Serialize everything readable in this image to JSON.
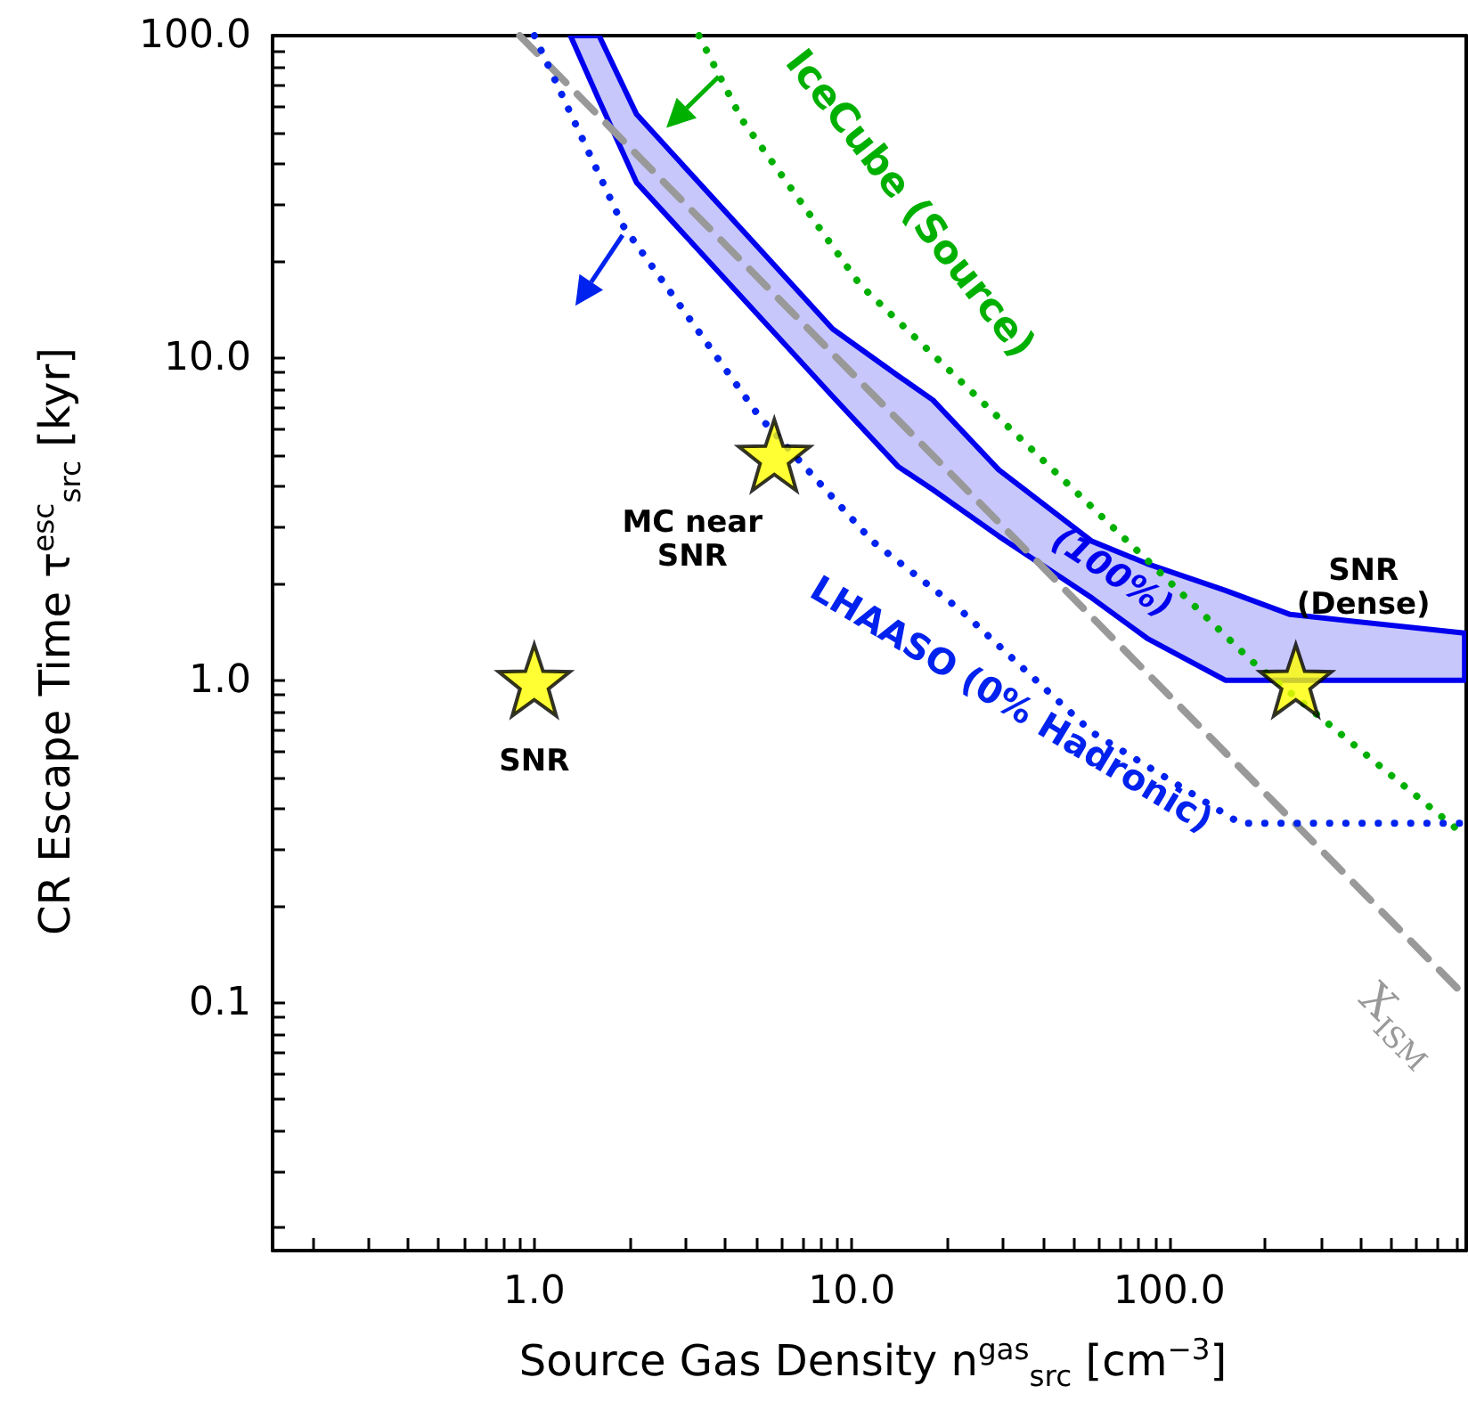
{
  "chart_data": {
    "type": "line",
    "xlabel": "Source Gas Density n$^{gas}$$_{src}$ [cm$^{−3}$]",
    "ylabel": "CR Escape Time τ$^{esc}$$_{src}$ [kyr]",
    "log": "xy",
    "grid": false,
    "xlim": [
      0.15,
      860
    ],
    "ylim": [
      0.017,
      100
    ],
    "xticks": [
      {
        "value": 0.2,
        "label": null
      },
      {
        "value": 0.3,
        "label": null
      },
      {
        "value": 0.4,
        "label": null
      },
      {
        "value": 0.5,
        "label": null
      },
      {
        "value": 0.6,
        "label": null
      },
      {
        "value": 0.7,
        "label": null
      },
      {
        "value": 0.8,
        "label": null
      },
      {
        "value": 0.9,
        "label": null
      },
      {
        "value": 1,
        "label": "1.0"
      },
      {
        "value": 2,
        "label": null
      },
      {
        "value": 3,
        "label": null
      },
      {
        "value": 4,
        "label": null
      },
      {
        "value": 5,
        "label": null
      },
      {
        "value": 6,
        "label": null
      },
      {
        "value": 7,
        "label": null
      },
      {
        "value": 8,
        "label": null
      },
      {
        "value": 9,
        "label": null
      },
      {
        "value": 10,
        "label": "10.0"
      },
      {
        "value": 20,
        "label": null
      },
      {
        "value": 30,
        "label": null
      },
      {
        "value": 40,
        "label": null
      },
      {
        "value": 50,
        "label": null
      },
      {
        "value": 60,
        "label": null
      },
      {
        "value": 70,
        "label": null
      },
      {
        "value": 80,
        "label": null
      },
      {
        "value": 90,
        "label": null
      },
      {
        "value": 100,
        "label": "100.0"
      },
      {
        "value": 200,
        "label": null
      },
      {
        "value": 300,
        "label": null
      },
      {
        "value": 400,
        "label": null
      },
      {
        "value": 500,
        "label": null
      },
      {
        "value": 600,
        "label": null
      },
      {
        "value": 700,
        "label": null
      },
      {
        "value": 800,
        "label": null
      }
    ],
    "yticks": [
      {
        "value": 0.02,
        "label": null
      },
      {
        "value": 0.03,
        "label": null
      },
      {
        "value": 0.04,
        "label": null
      },
      {
        "value": 0.05,
        "label": null
      },
      {
        "value": 0.06,
        "label": null
      },
      {
        "value": 0.07,
        "label": null
      },
      {
        "value": 0.08,
        "label": null
      },
      {
        "value": 0.09,
        "label": null
      },
      {
        "value": 0.1,
        "label": "0.1"
      },
      {
        "value": 0.2,
        "label": null
      },
      {
        "value": 0.3,
        "label": null
      },
      {
        "value": 0.4,
        "label": null
      },
      {
        "value": 0.5,
        "label": null
      },
      {
        "value": 0.6,
        "label": null
      },
      {
        "value": 0.7,
        "label": null
      },
      {
        "value": 0.8,
        "label": null
      },
      {
        "value": 0.9,
        "label": null
      },
      {
        "value": 1,
        "label": "1.0"
      },
      {
        "value": 2,
        "label": null
      },
      {
        "value": 3,
        "label": null
      },
      {
        "value": 4,
        "label": null
      },
      {
        "value": 5,
        "label": null
      },
      {
        "value": 6,
        "label": null
      },
      {
        "value": 7,
        "label": null
      },
      {
        "value": 8,
        "label": null
      },
      {
        "value": 9,
        "label": null
      },
      {
        "value": 10,
        "label": "10.0"
      },
      {
        "value": 20,
        "label": null
      },
      {
        "value": 30,
        "label": null
      },
      {
        "value": 40,
        "label": null
      },
      {
        "value": 50,
        "label": null
      },
      {
        "value": 60,
        "label": null
      },
      {
        "value": 70,
        "label": null
      },
      {
        "value": 80,
        "label": null
      },
      {
        "value": 90,
        "label": null
      },
      {
        "value": 100,
        "label": "100.0"
      }
    ],
    "series": [
      {
        "name": "(100%)",
        "type": "area",
        "color": "#0000ee",
        "x": [
          1.3,
          1.6,
          2.1,
          8.7,
          14,
          18,
          29,
          57,
          85,
          150,
          240,
          850
        ],
        "values": [
          null,
          null,
          null,
          null,
          null,
          null,
          null,
          null,
          null,
          null,
          null,
          null
        ],
        "upper": [
          100,
          100,
          57,
          12.3,
          8.8,
          7.4,
          4.5,
          2.7,
          2.3,
          1.9,
          1.6,
          1.4
        ],
        "lower": [
          100,
          63,
          35,
          7.6,
          4.6,
          3.9,
          2.8,
          1.8,
          1.35,
          1.0,
          1.0,
          1.0
        ]
      },
      {
        "name": "X$_{ISM}$",
        "color": "#999999",
        "line_style": "dashed",
        "marker": "none",
        "x": [
          0.9,
          850
        ],
        "values": [
          100,
          0.105
        ]
      },
      {
        "name": "IceCube (Source)",
        "color": "#00b000",
        "line_style": "dotted",
        "marker": "none",
        "x": [
          3.3,
          4.5,
          10.6,
          80,
          181,
          850
        ],
        "values": [
          100,
          55,
          16.9,
          2.5,
          1.15,
          0.33
        ]
      },
      {
        "name": "LHAASO (0% Hadronic)",
        "color": "#0022ee",
        "line_style": "dotted",
        "marker": "none",
        "x": [
          1.0,
          1.9,
          5.1,
          11.6,
          22,
          57,
          167,
          850
        ],
        "values": [
          100,
          25.8,
          6.6,
          2.7,
          1.65,
          0.69,
          0.36,
          0.36
        ]
      },
      {
        "type": "scatter",
        "color": "#ffff00",
        "marker": "star",
        "x": [
          1.0,
          5.7,
          250
        ],
        "values": [
          1.0,
          5.0,
          1.0
        ]
      }
    ],
    "annotations": [
      {
        "text": "SNR",
        "x": 1.0,
        "y": 1.0
      },
      {
        "text": "MC near\nSNR",
        "x": 5.7,
        "y": 5.0
      },
      {
        "text": "SNR\n(Dense)",
        "x": 250,
        "y": 1.0
      }
    ]
  }
}
